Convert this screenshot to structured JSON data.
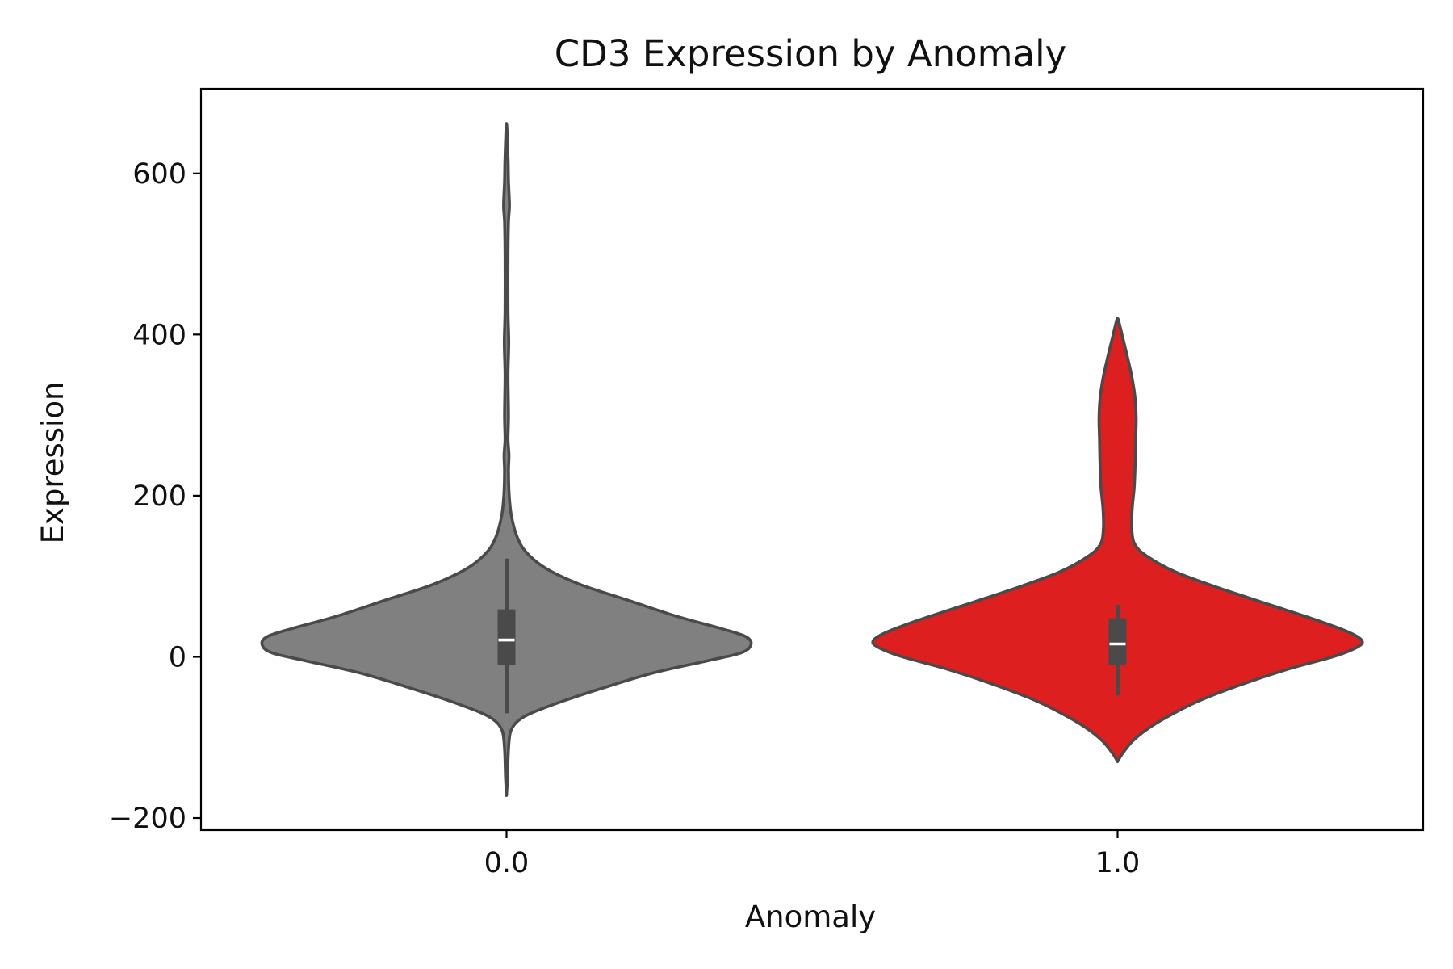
{
  "chart_data": {
    "type": "violin",
    "title": "CD3 Expression by Anomaly",
    "xlabel": "Anomaly",
    "ylabel": "Expression",
    "categories": [
      "0.0",
      "1.0"
    ],
    "ylim": [
      -215,
      705
    ],
    "yticks": [
      -200,
      0,
      200,
      400,
      600
    ],
    "ytick_labels": [
      "−200",
      "0",
      "200",
      "400",
      "600"
    ],
    "grid": false,
    "series": [
      {
        "category": "0.0",
        "fill_color": "#808080",
        "min": -172,
        "max": 662,
        "whisker_low": -70,
        "whisker_high": 122,
        "q1": -10,
        "median": 21,
        "q3": 59,
        "density_profile": [
          [
            -172,
            0.0
          ],
          [
            -150,
            0.004
          ],
          [
            -120,
            0.007
          ],
          [
            -100,
            0.012
          ],
          [
            -90,
            0.02
          ],
          [
            -80,
            0.045
          ],
          [
            -70,
            0.1
          ],
          [
            -55,
            0.23
          ],
          [
            -40,
            0.38
          ],
          [
            -20,
            0.6
          ],
          [
            -5,
            0.82
          ],
          [
            5,
            0.96
          ],
          [
            15,
            1.0
          ],
          [
            25,
            0.98
          ],
          [
            35,
            0.88
          ],
          [
            50,
            0.7
          ],
          [
            70,
            0.5
          ],
          [
            90,
            0.3
          ],
          [
            110,
            0.16
          ],
          [
            130,
            0.08
          ],
          [
            150,
            0.042
          ],
          [
            175,
            0.02
          ],
          [
            200,
            0.011
          ],
          [
            230,
            0.008
          ],
          [
            250,
            0.01
          ],
          [
            270,
            0.006
          ],
          [
            300,
            0.008
          ],
          [
            350,
            0.006
          ],
          [
            390,
            0.009
          ],
          [
            430,
            0.006
          ],
          [
            500,
            0.006
          ],
          [
            540,
            0.008
          ],
          [
            560,
            0.012
          ],
          [
            590,
            0.008
          ],
          [
            620,
            0.006
          ],
          [
            662,
            0.0
          ]
        ]
      },
      {
        "category": "1.0",
        "fill_color": "#de1f1f",
        "min": -130,
        "max": 420,
        "whisker_low": -48,
        "whisker_high": 65,
        "q1": -10,
        "median": 16,
        "q3": 48,
        "density_profile": [
          [
            -130,
            0.0
          ],
          [
            -120,
            0.02
          ],
          [
            -105,
            0.06
          ],
          [
            -90,
            0.12
          ],
          [
            -75,
            0.2
          ],
          [
            -55,
            0.33
          ],
          [
            -35,
            0.5
          ],
          [
            -15,
            0.7
          ],
          [
            0,
            0.88
          ],
          [
            12,
            0.98
          ],
          [
            20,
            1.0
          ],
          [
            30,
            0.95
          ],
          [
            45,
            0.82
          ],
          [
            65,
            0.62
          ],
          [
            85,
            0.42
          ],
          [
            105,
            0.24
          ],
          [
            125,
            0.12
          ],
          [
            140,
            0.07
          ],
          [
            160,
            0.058
          ],
          [
            185,
            0.06
          ],
          [
            210,
            0.068
          ],
          [
            240,
            0.072
          ],
          [
            270,
            0.074
          ],
          [
            295,
            0.076
          ],
          [
            320,
            0.072
          ],
          [
            345,
            0.06
          ],
          [
            370,
            0.042
          ],
          [
            395,
            0.022
          ],
          [
            410,
            0.01
          ],
          [
            420,
            0.0
          ]
        ]
      }
    ]
  }
}
